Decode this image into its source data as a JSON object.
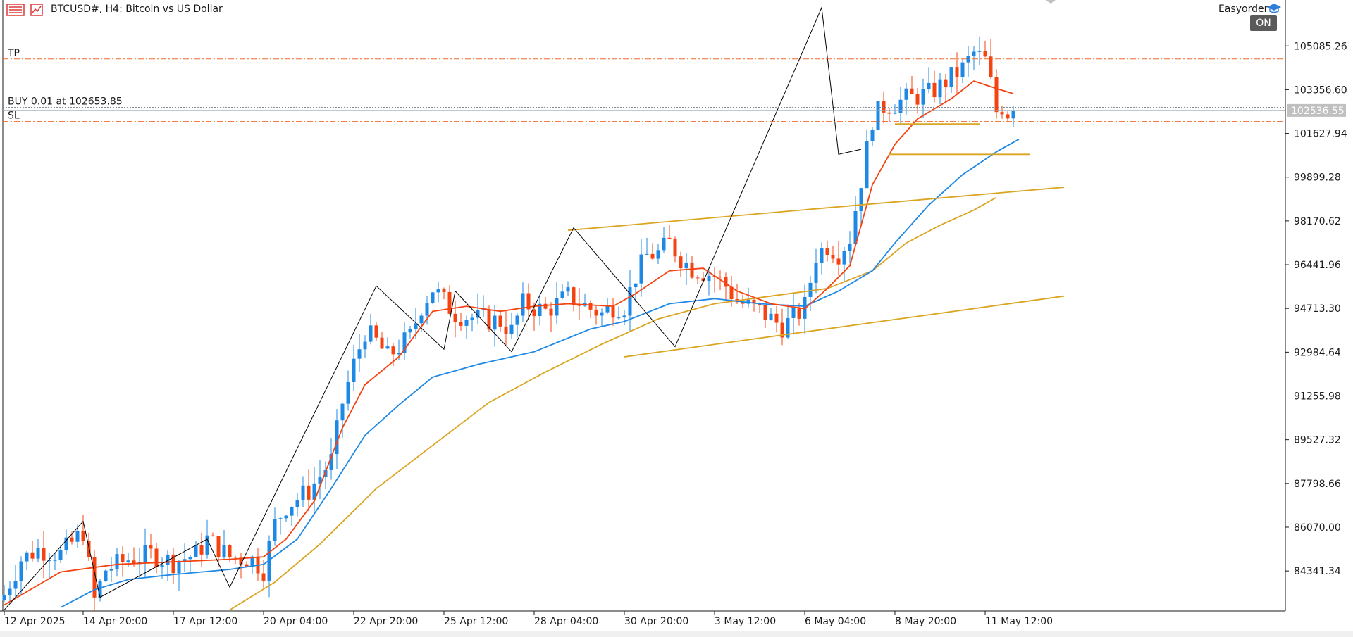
{
  "header": {
    "title": "BTCUSD#, H4:  Bitcoin vs US Dollar",
    "expert_label": "Easyorder",
    "on_badge": "ON",
    "chart_icon": "chart-list-icon",
    "symbol_icon": "symbol-chart-icon",
    "cap_icon": "graduation-cap-icon"
  },
  "trade_lines": {
    "tp_label": "TP",
    "buy_label": "BUY 0.01 at 102653.85",
    "sl_label": "SL",
    "tp_price": 104570,
    "buy_price": 102653.85,
    "sl_price": 102100,
    "bid_price": 102536.55,
    "bid_label": "102536.55"
  },
  "colors": {
    "bull": "#1e88e5",
    "bear": "#f44311",
    "ma_fast": "#f44311",
    "ma_mid": "#1e88e5",
    "ma_slow": "#daa520",
    "trendline": "#daa520",
    "zigzag": "#000000",
    "trade_line": "#f46a2a",
    "bid_box": "#c0c0c0"
  },
  "chart_data": {
    "type": "candlestick",
    "symbol": "BTCUSD#",
    "timeframe": "H4",
    "ylim": [
      82760,
      106900
    ],
    "y_ticks": [
      "105085.26",
      "103356.60",
      "101627.94",
      "99899.28",
      "98170.62",
      "96441.96",
      "94713.30",
      "92984.64",
      "91255.98",
      "89527.32",
      "87798.66",
      "86070.00",
      "84341.34"
    ],
    "y_tick_values": [
      105085.26,
      103356.6,
      101627.94,
      99899.28,
      98170.62,
      96441.96,
      94713.3,
      92984.64,
      91255.98,
      89527.32,
      87798.66,
      86070.0,
      84341.34
    ],
    "x_ticks": [
      "12 Apr 2025",
      "14 Apr 20:00",
      "17 Apr 12:00",
      "20 Apr 04:00",
      "22 Apr 20:00",
      "25 Apr 12:00",
      "28 Apr 04:00",
      "30 Apr 20:00",
      "3 May 12:00",
      "6 May 04:00",
      "8 May 20:00",
      "11 May 12:00"
    ],
    "x_tick_bars": [
      0,
      14,
      30,
      46,
      62,
      78,
      94,
      110,
      126,
      142,
      158,
      174
    ],
    "bar_count": 182,
    "close_points": [
      [
        0,
        83400
      ],
      [
        3,
        84800
      ],
      [
        6,
        85200
      ],
      [
        10,
        85000
      ],
      [
        14,
        85900
      ],
      [
        16,
        83200
      ],
      [
        18,
        84400
      ],
      [
        22,
        84800
      ],
      [
        26,
        85000
      ],
      [
        30,
        84700
      ],
      [
        34,
        85000
      ],
      [
        36,
        85600
      ],
      [
        40,
        84900
      ],
      [
        44,
        84800
      ],
      [
        46,
        84400
      ],
      [
        48,
        86200
      ],
      [
        50,
        86900
      ],
      [
        54,
        87500
      ],
      [
        58,
        88700
      ],
      [
        60,
        91000
      ],
      [
        62,
        92500
      ],
      [
        64,
        93800
      ],
      [
        66,
        93400
      ],
      [
        68,
        92800
      ],
      [
        70,
        93200
      ],
      [
        72,
        93600
      ],
      [
        74,
        94800
      ],
      [
        76,
        95500
      ],
      [
        78,
        95000
      ],
      [
        80,
        94500
      ],
      [
        84,
        94300
      ],
      [
        88,
        94200
      ],
      [
        90,
        93800
      ],
      [
        92,
        94900
      ],
      [
        96,
        94600
      ],
      [
        100,
        95200
      ],
      [
        104,
        94700
      ],
      [
        106,
        94500
      ],
      [
        108,
        94800
      ],
      [
        110,
        94800
      ],
      [
        112,
        96000
      ],
      [
        114,
        96800
      ],
      [
        116,
        96900
      ],
      [
        118,
        97300
      ],
      [
        120,
        96700
      ],
      [
        122,
        96300
      ],
      [
        126,
        96000
      ],
      [
        128,
        95600
      ],
      [
        130,
        95000
      ],
      [
        134,
        94600
      ],
      [
        138,
        94000
      ],
      [
        140,
        94300
      ],
      [
        142,
        94800
      ],
      [
        144,
        96800
      ],
      [
        146,
        97200
      ],
      [
        148,
        96900
      ],
      [
        150,
        97500
      ],
      [
        152,
        99800
      ],
      [
        154,
        102200
      ],
      [
        156,
        102700
      ],
      [
        158,
        102800
      ],
      [
        160,
        103000
      ],
      [
        164,
        103200
      ],
      [
        166,
        103500
      ],
      [
        170,
        104200
      ],
      [
        172,
        104800
      ],
      [
        174,
        104500
      ],
      [
        175,
        103600
      ],
      [
        176,
        102500
      ],
      [
        177,
        102700
      ],
      [
        178,
        102450
      ],
      [
        179,
        102536
      ]
    ],
    "ma_fast": [
      [
        0,
        83000
      ],
      [
        10,
        84300
      ],
      [
        20,
        84600
      ],
      [
        30,
        84700
      ],
      [
        40,
        84800
      ],
      [
        46,
        84900
      ],
      [
        50,
        85600
      ],
      [
        55,
        87100
      ],
      [
        60,
        90000
      ],
      [
        64,
        91700
      ],
      [
        70,
        92800
      ],
      [
        76,
        94600
      ],
      [
        82,
        94800
      ],
      [
        88,
        94600
      ],
      [
        94,
        94800
      ],
      [
        100,
        94900
      ],
      [
        108,
        94800
      ],
      [
        112,
        95300
      ],
      [
        118,
        96200
      ],
      [
        124,
        96300
      ],
      [
        130,
        95400
      ],
      [
        136,
        94900
      ],
      [
        142,
        94700
      ],
      [
        146,
        95500
      ],
      [
        150,
        96400
      ],
      [
        154,
        99600
      ],
      [
        158,
        101200
      ],
      [
        162,
        102200
      ],
      [
        168,
        103000
      ],
      [
        172,
        103700
      ],
      [
        176,
        103400
      ],
      [
        179,
        103200
      ]
    ],
    "ma_mid": [
      [
        10,
        82900
      ],
      [
        16,
        83600
      ],
      [
        22,
        84000
      ],
      [
        30,
        84200
      ],
      [
        40,
        84400
      ],
      [
        46,
        84600
      ],
      [
        52,
        85600
      ],
      [
        58,
        87600
      ],
      [
        64,
        89700
      ],
      [
        70,
        90900
      ],
      [
        76,
        92000
      ],
      [
        84,
        92500
      ],
      [
        94,
        93000
      ],
      [
        104,
        93900
      ],
      [
        110,
        94200
      ],
      [
        118,
        94900
      ],
      [
        126,
        95100
      ],
      [
        134,
        94900
      ],
      [
        142,
        94800
      ],
      [
        148,
        95400
      ],
      [
        154,
        96200
      ],
      [
        158,
        97300
      ],
      [
        164,
        98800
      ],
      [
        170,
        100000
      ],
      [
        176,
        100900
      ],
      [
        180,
        101400
      ]
    ],
    "ma_slow": [
      [
        40,
        82800
      ],
      [
        48,
        83900
      ],
      [
        56,
        85400
      ],
      [
        66,
        87600
      ],
      [
        76,
        89300
      ],
      [
        86,
        91000
      ],
      [
        96,
        92200
      ],
      [
        106,
        93300
      ],
      [
        116,
        94300
      ],
      [
        126,
        94900
      ],
      [
        136,
        95200
      ],
      [
        146,
        95500
      ],
      [
        154,
        96200
      ],
      [
        160,
        97300
      ],
      [
        166,
        98000
      ],
      [
        172,
        98600
      ],
      [
        176,
        99100
      ]
    ],
    "trendlines": [
      {
        "name": "upper-channel",
        "points": [
          [
            100,
            97800
          ],
          [
            188,
            99500
          ]
        ]
      },
      {
        "name": "lower-channel",
        "points": [
          [
            110,
            92800
          ],
          [
            188,
            95200
          ]
        ]
      },
      {
        "name": "support-1",
        "points": [
          [
            158,
            102000
          ],
          [
            173,
            102000
          ]
        ]
      },
      {
        "name": "support-2",
        "points": [
          [
            157,
            100800
          ],
          [
            182,
            100800
          ]
        ]
      }
    ],
    "zigzag": [
      [
        0,
        82800
      ],
      [
        14,
        86300
      ],
      [
        17,
        83300
      ],
      [
        36,
        85600
      ],
      [
        40,
        83700
      ],
      [
        66,
        95600
      ],
      [
        78,
        93100
      ],
      [
        80,
        95400
      ],
      [
        90,
        93000
      ],
      [
        101,
        97900
      ],
      [
        119,
        93200
      ],
      [
        145,
        106600
      ],
      [
        148,
        100800
      ],
      [
        152,
        101000
      ]
    ]
  }
}
